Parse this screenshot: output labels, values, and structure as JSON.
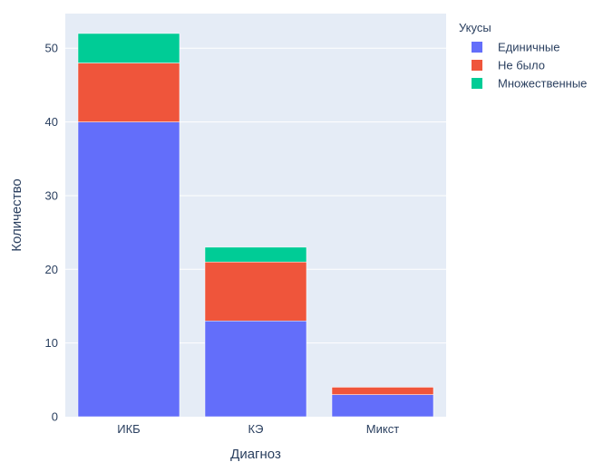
{
  "chart_data": {
    "type": "bar",
    "barmode": "stack",
    "categories": [
      "ИКБ",
      "КЭ",
      "Микст"
    ],
    "series": [
      {
        "name": "Единичные",
        "values": [
          40,
          13,
          3
        ],
        "color": "#636efa"
      },
      {
        "name": "Не было",
        "values": [
          8,
          8,
          1
        ],
        "color": "#ef553b"
      },
      {
        "name": "Множественные",
        "values": [
          4,
          2,
          0
        ],
        "color": "#00cc96"
      }
    ],
    "xlabel": "Диагноз",
    "ylabel": "Количество",
    "ylim": [
      0,
      54.7
    ],
    "yticks": [
      0,
      10,
      20,
      30,
      40,
      50
    ],
    "legend_title": "Укусы",
    "legend_position": "top-right",
    "grid": true,
    "plot_background": "#e5ecf6",
    "grid_color": "#ffffff"
  }
}
